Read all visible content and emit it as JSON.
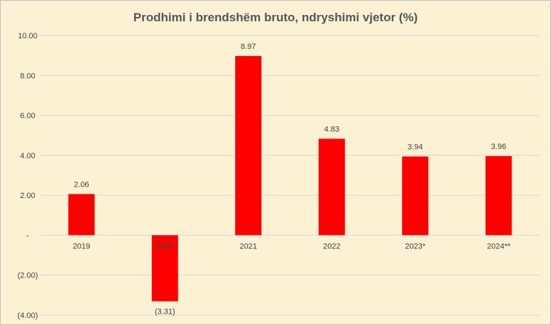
{
  "chart_data": {
    "type": "bar",
    "title": "Prodhimi i brendshëm bruto, ndryshimi vjetor (%)",
    "xlabel": "",
    "ylabel": "",
    "categories": [
      "2019",
      "2020",
      "2021",
      "2022",
      "2023*",
      "2024**"
    ],
    "values": [
      2.06,
      -3.31,
      8.97,
      4.83,
      3.94,
      3.96
    ],
    "value_labels": [
      "2.06",
      "(3.31)",
      "8.97",
      "4.83",
      "3.94",
      "3.96"
    ],
    "ylim": [
      -4,
      10
    ],
    "yticks": [
      10,
      8,
      6,
      4,
      2,
      0,
      -2,
      -4
    ],
    "ytick_labels": [
      "10.00",
      "8.00",
      "6.00",
      "4.00",
      "2.00",
      "-",
      "(2.00)",
      "(4.00)"
    ],
    "grid": true,
    "legend": "none",
    "colors": {
      "bar": "#ff0000",
      "background": "#fdf1d3",
      "grid": "#d9d9d9"
    }
  }
}
